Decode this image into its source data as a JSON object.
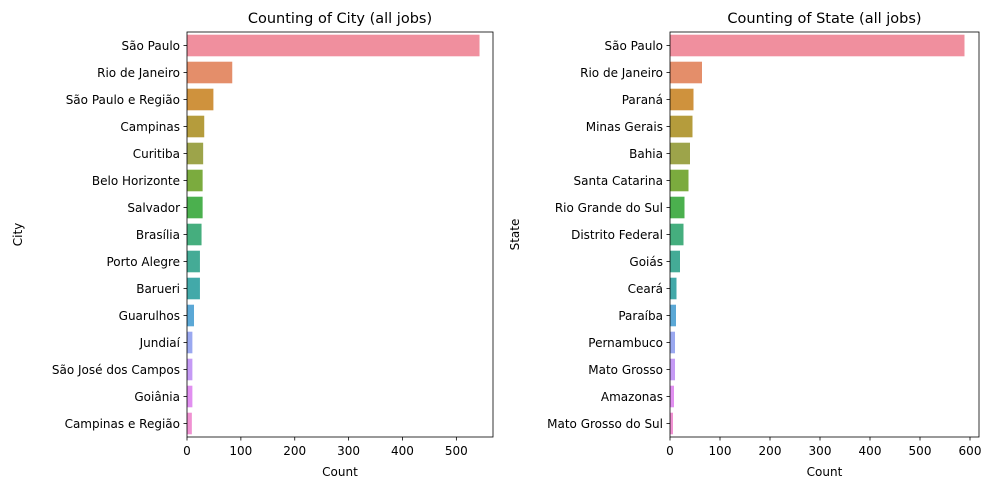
{
  "chart_data": [
    {
      "type": "bar",
      "orientation": "horizontal",
      "title": "Counting of City (all jobs)",
      "xlabel": "Count",
      "ylabel": "City",
      "xlim": [
        0,
        568
      ],
      "xticks": [
        0,
        100,
        200,
        300,
        400,
        500
      ],
      "grid": false,
      "categories": [
        "São Paulo",
        "Rio de Janeiro",
        "São Paulo e Região",
        "Campinas",
        "Curitiba",
        "Belo Horizonte",
        "Salvador",
        "Brasília",
        "Porto Alegre",
        "Barueri",
        "Guarulhos",
        "Jundiaí",
        "São José dos Campos",
        "Goiânia",
        "Campinas e Região"
      ],
      "values": [
        543,
        84,
        49,
        32,
        30,
        29,
        29,
        27,
        24,
        24,
        13,
        10,
        10,
        10,
        9
      ],
      "colors": [
        "#f08f9e",
        "#e48e6a",
        "#cf923d",
        "#b59c3c",
        "#9da44a",
        "#7bab3e",
        "#4bb04e",
        "#45ae7e",
        "#44ab96",
        "#42a9a9",
        "#5ba8d6",
        "#9aa8f0",
        "#c59af5",
        "#e18ff0",
        "#f091d2"
      ]
    },
    {
      "type": "bar",
      "orientation": "horizontal",
      "title": "Counting of State (all jobs)",
      "xlabel": "Count",
      "ylabel": "State",
      "xlim": [
        0,
        618
      ],
      "xticks": [
        0,
        100,
        200,
        300,
        400,
        500,
        600
      ],
      "grid": false,
      "categories": [
        "São Paulo",
        "Rio de Janeiro",
        "Paraná",
        "Minas Gerais",
        "Bahia",
        "Santa Catarina",
        "Rio Grande do Sul",
        "Distrito Federal",
        "Goiás",
        "Ceará",
        "Paraíba",
        "Pernambuco",
        "Mato Grosso",
        "Amazonas",
        "Mato Grosso do Sul"
      ],
      "values": [
        589,
        64,
        47,
        45,
        40,
        37,
        29,
        27,
        20,
        13,
        12,
        10,
        10,
        8,
        6
      ],
      "colors": [
        "#f08f9e",
        "#e48e6a",
        "#cf923d",
        "#b59c3c",
        "#9da44a",
        "#7bab3e",
        "#4bb04e",
        "#45ae7e",
        "#44ab96",
        "#42a9a9",
        "#5ba8d6",
        "#9aa8f0",
        "#c59af5",
        "#e18ff0",
        "#f091d2"
      ]
    }
  ]
}
